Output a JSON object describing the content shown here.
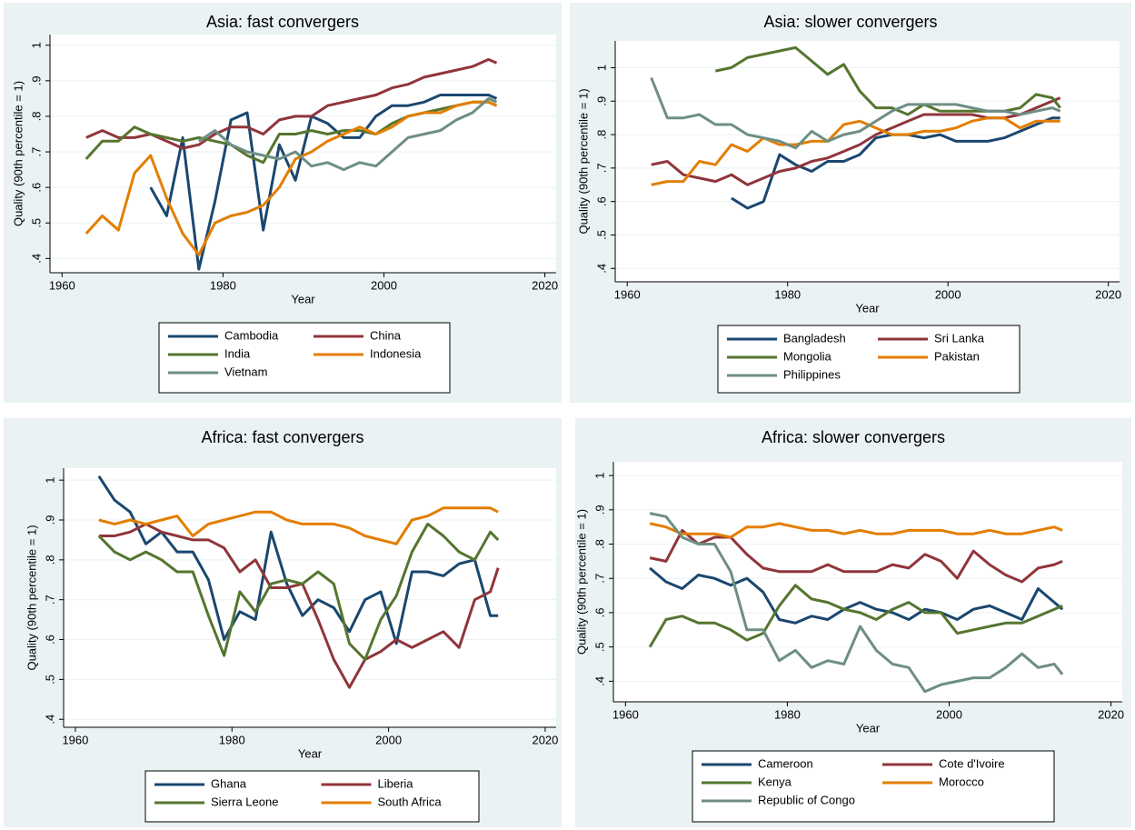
{
  "chart_data": [
    {
      "type": "line",
      "title": "Asia: fast convergers",
      "x_label": "Year",
      "y_label": "Quality (90th percentile = 1)",
      "x": [
        1963,
        1965,
        1967,
        1969,
        1971,
        1973,
        1975,
        1977,
        1979,
        1981,
        1983,
        1985,
        1987,
        1989,
        1991,
        1993,
        1995,
        1997,
        1999,
        2001,
        2003,
        2005,
        2007,
        2009,
        2011,
        2013,
        2014
      ],
      "xlim": [
        1958.5,
        2021.4
      ],
      "xticks": [
        1960,
        1980,
        2000,
        2020
      ],
      "ylim": [
        0.36,
        1.03
      ],
      "yticks": [
        {
          "value": 0.4,
          "label": ".4"
        },
        {
          "value": 0.5,
          "label": ".5"
        },
        {
          "value": 0.6,
          "label": ".6"
        },
        {
          "value": 0.7,
          "label": ".7"
        },
        {
          "value": 0.8,
          "label": ".8"
        },
        {
          "value": 0.9,
          "label": ".9"
        },
        1
      ],
      "grid": true,
      "series": [
        {
          "name": "Cambodia",
          "color": "#1a476f",
          "values": [
            null,
            null,
            null,
            null,
            0.6,
            0.52,
            0.74,
            0.37,
            0.56,
            0.79,
            0.81,
            0.48,
            0.72,
            0.62,
            0.8,
            0.78,
            0.74,
            0.74,
            0.8,
            0.83,
            0.83,
            0.84,
            0.86,
            0.86,
            0.86,
            0.86,
            0.85
          ]
        },
        {
          "name": "China",
          "color": "#90353b",
          "values": [
            0.74,
            0.76,
            0.74,
            0.74,
            0.75,
            0.73,
            0.71,
            0.72,
            0.75,
            0.77,
            0.77,
            0.75,
            0.79,
            0.8,
            0.8,
            0.83,
            0.84,
            0.85,
            0.86,
            0.88,
            0.89,
            0.91,
            0.92,
            0.93,
            0.94,
            0.96,
            0.95
          ]
        },
        {
          "name": "India",
          "color": "#55752f",
          "values": [
            0.68,
            0.73,
            0.73,
            0.77,
            0.75,
            0.74,
            0.73,
            0.74,
            0.73,
            0.72,
            0.69,
            0.67,
            0.75,
            0.75,
            0.76,
            0.75,
            0.76,
            0.76,
            0.75,
            0.78,
            0.8,
            0.81,
            0.82,
            0.83,
            0.84,
            0.84,
            0.83
          ]
        },
        {
          "name": "Indonesia",
          "color": "#e37e00",
          "values": [
            0.47,
            0.52,
            0.48,
            0.64,
            0.69,
            0.57,
            0.47,
            0.41,
            0.5,
            0.52,
            0.53,
            0.55,
            0.6,
            0.68,
            0.7,
            0.73,
            0.75,
            0.77,
            0.75,
            0.77,
            0.8,
            0.81,
            0.81,
            0.83,
            0.84,
            0.84,
            0.83
          ]
        },
        {
          "name": "Vietnam",
          "color": "#6e8e84",
          "values": [
            null,
            null,
            null,
            null,
            null,
            null,
            null,
            0.73,
            0.76,
            0.72,
            0.7,
            0.69,
            0.68,
            0.7,
            0.66,
            0.67,
            0.65,
            0.67,
            0.66,
            0.7,
            0.74,
            0.75,
            0.76,
            0.79,
            0.81,
            0.85,
            0.84
          ]
        }
      ]
    },
    {
      "type": "line",
      "title": "Asia: slower convergers",
      "x_label": "Year",
      "y_label": "Quality (90th percentile = 1)",
      "x": [
        1963,
        1965,
        1967,
        1969,
        1971,
        1973,
        1975,
        1977,
        1979,
        1981,
        1983,
        1985,
        1987,
        1989,
        1991,
        1993,
        1995,
        1997,
        1999,
        2001,
        2003,
        2005,
        2007,
        2009,
        2011,
        2013,
        2014
      ],
      "xlim": [
        1958.5,
        2021.4
      ],
      "xticks": [
        1960,
        1980,
        2000,
        2020
      ],
      "ylim": [
        0.36,
        1.08
      ],
      "yticks": [
        {
          "value": 0.4,
          "label": ".4"
        },
        {
          "value": 0.5,
          "label": ".5"
        },
        {
          "value": 0.6,
          "label": ".6"
        },
        {
          "value": 0.7,
          "label": ".7"
        },
        {
          "value": 0.8,
          "label": ".8"
        },
        {
          "value": 0.9,
          "label": ".9"
        },
        1
      ],
      "grid": true,
      "series": [
        {
          "name": "Bangladesh",
          "color": "#1a476f",
          "values": [
            null,
            null,
            null,
            null,
            null,
            0.61,
            0.58,
            0.6,
            0.74,
            0.71,
            0.69,
            0.72,
            0.72,
            0.74,
            0.79,
            0.8,
            0.8,
            0.79,
            0.8,
            0.78,
            0.78,
            0.78,
            0.79,
            0.81,
            0.83,
            0.85,
            0.85
          ]
        },
        {
          "name": "Sri Lanka",
          "color": "#90353b",
          "values": [
            0.71,
            0.72,
            0.68,
            0.67,
            0.66,
            0.68,
            0.65,
            0.67,
            0.69,
            0.7,
            0.72,
            0.73,
            0.75,
            0.77,
            0.8,
            0.82,
            0.84,
            0.86,
            0.86,
            0.86,
            0.86,
            0.85,
            0.85,
            0.86,
            0.88,
            0.9,
            0.91
          ]
        },
        {
          "name": "Mongolia",
          "color": "#55752f",
          "values": [
            null,
            null,
            null,
            null,
            0.99,
            1.0,
            1.03,
            1.04,
            1.05,
            1.06,
            1.02,
            0.98,
            1.01,
            0.93,
            0.88,
            0.88,
            0.86,
            0.89,
            0.87,
            0.87,
            0.87,
            0.87,
            0.87,
            0.88,
            0.92,
            0.91,
            0.88
          ]
        },
        {
          "name": "Pakistan",
          "color": "#e37e00",
          "values": [
            0.65,
            0.66,
            0.66,
            0.72,
            0.71,
            0.77,
            0.75,
            0.79,
            0.77,
            0.77,
            0.78,
            0.78,
            0.83,
            0.84,
            0.82,
            0.8,
            0.8,
            0.81,
            0.81,
            0.82,
            0.84,
            0.85,
            0.85,
            0.82,
            0.84,
            0.84,
            0.84
          ]
        },
        {
          "name": "Philippines",
          "color": "#6e8e84",
          "values": [
            0.97,
            0.85,
            0.85,
            0.86,
            0.83,
            0.83,
            0.8,
            0.79,
            0.78,
            0.76,
            0.81,
            0.78,
            0.8,
            0.81,
            0.84,
            0.87,
            0.89,
            0.89,
            0.89,
            0.89,
            0.88,
            0.87,
            0.87,
            0.86,
            0.87,
            0.88,
            0.87
          ]
        }
      ]
    },
    {
      "type": "line",
      "title": "Africa: fast convergers",
      "x_label": "Year",
      "y_label": "Quality (90th percentile = 1)",
      "x": [
        1963,
        1965,
        1967,
        1969,
        1971,
        1973,
        1975,
        1977,
        1979,
        1981,
        1983,
        1985,
        1987,
        1989,
        1991,
        1993,
        1995,
        1997,
        1999,
        2001,
        2003,
        2005,
        2007,
        2009,
        2011,
        2013,
        2014
      ],
      "xlim": [
        1958.5,
        2021.4
      ],
      "xticks": [
        1960,
        1980,
        2000,
        2020
      ],
      "ylim": [
        0.38,
        1.03
      ],
      "yticks": [
        {
          "value": 0.4,
          "label": ".4"
        },
        {
          "value": 0.5,
          "label": ".5"
        },
        {
          "value": 0.6,
          "label": ".6"
        },
        {
          "value": 0.7,
          "label": ".7"
        },
        {
          "value": 0.8,
          "label": ".8"
        },
        {
          "value": 0.9,
          "label": ".9"
        },
        1
      ],
      "grid": true,
      "series": [
        {
          "name": "Ghana",
          "color": "#1a476f",
          "values": [
            1.01,
            0.95,
            0.92,
            0.84,
            0.87,
            0.82,
            0.82,
            0.75,
            0.6,
            0.67,
            0.65,
            0.87,
            0.74,
            0.66,
            0.7,
            0.68,
            0.62,
            0.7,
            0.72,
            0.59,
            0.77,
            0.77,
            0.76,
            0.79,
            0.8,
            0.66,
            0.66
          ]
        },
        {
          "name": "Liberia",
          "color": "#90353b",
          "values": [
            0.86,
            0.86,
            0.87,
            0.89,
            0.87,
            0.86,
            0.85,
            0.85,
            0.83,
            0.77,
            0.8,
            0.73,
            0.73,
            0.74,
            0.65,
            0.55,
            0.48,
            0.55,
            0.57,
            0.6,
            0.58,
            0.6,
            0.62,
            0.58,
            0.7,
            0.72,
            0.78
          ]
        },
        {
          "name": "Sierra Leone",
          "color": "#55752f",
          "values": [
            0.86,
            0.82,
            0.8,
            0.82,
            0.8,
            0.77,
            0.77,
            0.66,
            0.56,
            0.72,
            0.67,
            0.74,
            0.75,
            0.74,
            0.77,
            0.74,
            0.59,
            0.55,
            0.65,
            0.71,
            0.82,
            0.89,
            0.86,
            0.82,
            0.8,
            0.87,
            0.85
          ]
        },
        {
          "name": "South Africa",
          "color": "#e37e00",
          "values": [
            0.9,
            0.89,
            0.9,
            0.89,
            0.9,
            0.91,
            0.86,
            0.89,
            0.9,
            0.91,
            0.92,
            0.92,
            0.9,
            0.89,
            0.89,
            0.89,
            0.88,
            0.86,
            0.85,
            0.84,
            0.9,
            0.91,
            0.93,
            0.93,
            0.93,
            0.93,
            0.92
          ]
        }
      ]
    },
    {
      "type": "line",
      "title": "Africa: slower convergers",
      "x_label": "Year",
      "y_label": "Quality (90th percentile = 1)",
      "x": [
        1963,
        1965,
        1967,
        1969,
        1971,
        1973,
        1975,
        1977,
        1979,
        1981,
        1983,
        1985,
        1987,
        1989,
        1991,
        1993,
        1995,
        1997,
        1999,
        2001,
        2003,
        2005,
        2007,
        2009,
        2011,
        2013,
        2014
      ],
      "xlim": [
        1958.5,
        2021.4
      ],
      "xticks": [
        1960,
        1980,
        2000,
        2020
      ],
      "ylim": [
        0.34,
        1.04
      ],
      "yticks": [
        {
          "value": 0.4,
          "label": ".4"
        },
        {
          "value": 0.5,
          "label": ".5"
        },
        {
          "value": 0.6,
          "label": ".6"
        },
        {
          "value": 0.7,
          "label": ".7"
        },
        {
          "value": 0.8,
          "label": ".8"
        },
        {
          "value": 0.9,
          "label": ".9"
        },
        1
      ],
      "grid": true,
      "series": [
        {
          "name": "Cameroon",
          "color": "#1a476f",
          "values": [
            0.73,
            0.69,
            0.67,
            0.71,
            0.7,
            0.68,
            0.7,
            0.66,
            0.58,
            0.57,
            0.59,
            0.58,
            0.61,
            0.63,
            0.61,
            0.6,
            0.58,
            0.61,
            0.6,
            0.58,
            0.61,
            0.62,
            0.6,
            0.58,
            0.67,
            0.63,
            0.61
          ]
        },
        {
          "name": "Cote d'Ivoire",
          "color": "#90353b",
          "values": [
            0.76,
            0.75,
            0.84,
            0.8,
            0.82,
            0.82,
            0.77,
            0.73,
            0.72,
            0.72,
            0.72,
            0.74,
            0.72,
            0.72,
            0.72,
            0.74,
            0.73,
            0.77,
            0.75,
            0.7,
            0.78,
            0.74,
            0.71,
            0.69,
            0.73,
            0.74,
            0.75
          ]
        },
        {
          "name": "Kenya",
          "color": "#55752f",
          "values": [
            0.5,
            0.58,
            0.59,
            0.57,
            0.57,
            0.55,
            0.52,
            0.54,
            0.62,
            0.68,
            0.64,
            0.63,
            0.61,
            0.6,
            0.58,
            0.61,
            0.63,
            0.6,
            0.6,
            0.54,
            0.55,
            0.56,
            0.57,
            0.57,
            0.59,
            0.61,
            0.62
          ]
        },
        {
          "name": "Morocco",
          "color": "#e37e00",
          "values": [
            0.86,
            0.85,
            0.83,
            0.83,
            0.83,
            0.82,
            0.85,
            0.85,
            0.86,
            0.85,
            0.84,
            0.84,
            0.83,
            0.84,
            0.83,
            0.83,
            0.84,
            0.84,
            0.84,
            0.83,
            0.83,
            0.84,
            0.83,
            0.83,
            0.84,
            0.85,
            0.84
          ]
        },
        {
          "name": "Republic of Congo",
          "color": "#6e8e84",
          "values": [
            0.89,
            0.88,
            0.82,
            0.8,
            0.8,
            0.72,
            0.55,
            0.55,
            0.46,
            0.49,
            0.44,
            0.46,
            0.45,
            0.56,
            0.49,
            0.45,
            0.44,
            0.37,
            0.39,
            0.4,
            0.41,
            0.41,
            0.44,
            0.48,
            0.44,
            0.45,
            0.42
          ]
        }
      ]
    }
  ]
}
